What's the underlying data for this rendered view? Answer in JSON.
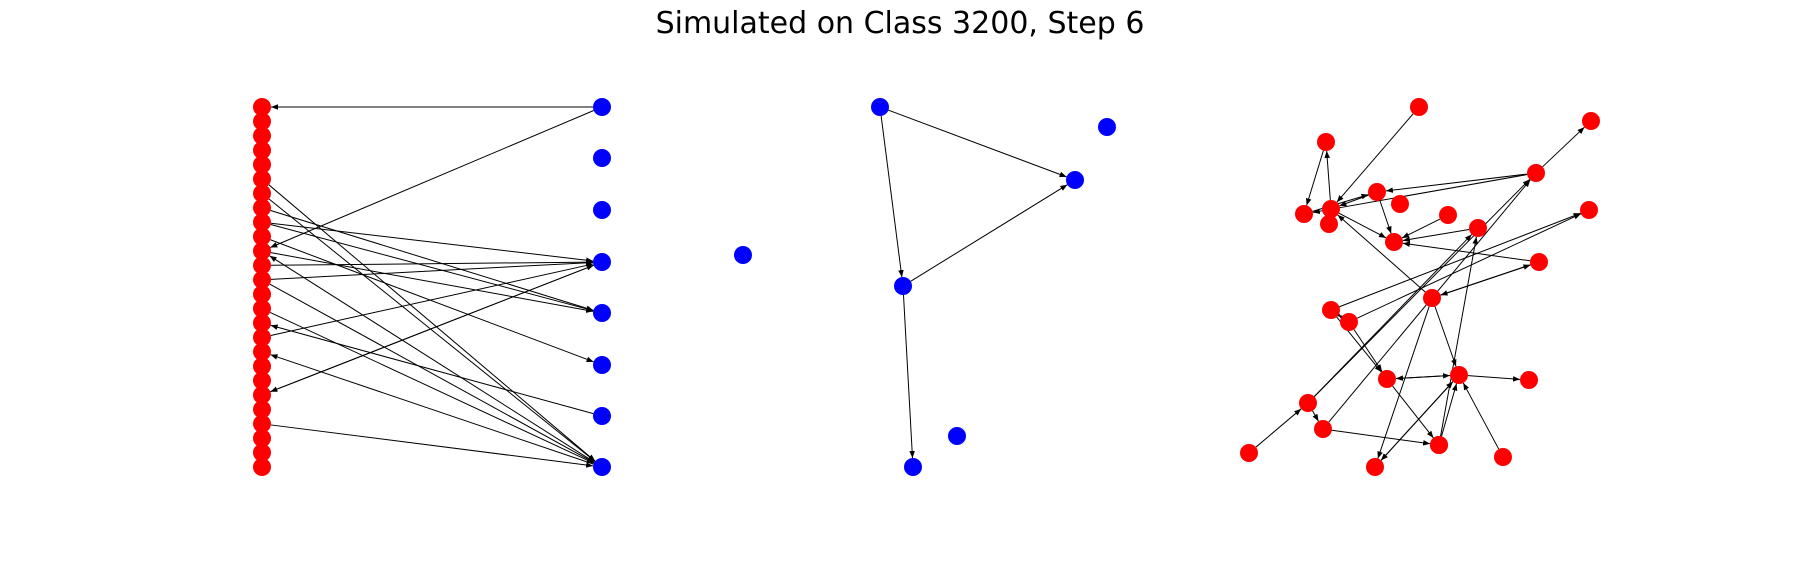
{
  "title": "Simulated on Class 3200, Step 6",
  "colors": {
    "red": "#ff0000",
    "blue": "#0000ff",
    "edge": "#000000"
  },
  "panels": [
    {
      "name": "bipartite",
      "nodes": [
        {
          "id": "r0",
          "c": "red"
        },
        {
          "id": "r1",
          "c": "red"
        },
        {
          "id": "r2",
          "c": "red"
        },
        {
          "id": "r3",
          "c": "red"
        },
        {
          "id": "r4",
          "c": "red"
        },
        {
          "id": "r5",
          "c": "red"
        },
        {
          "id": "r6",
          "c": "red"
        },
        {
          "id": "r7",
          "c": "red"
        },
        {
          "id": "r8",
          "c": "red"
        },
        {
          "id": "r9",
          "c": "red"
        },
        {
          "id": "r10",
          "c": "red"
        },
        {
          "id": "r11",
          "c": "red"
        },
        {
          "id": "r12",
          "c": "red"
        },
        {
          "id": "r13",
          "c": "red"
        },
        {
          "id": "r14",
          "c": "red"
        },
        {
          "id": "r15",
          "c": "red"
        },
        {
          "id": "r16",
          "c": "red"
        },
        {
          "id": "r17",
          "c": "red"
        },
        {
          "id": "r18",
          "c": "red"
        },
        {
          "id": "r19",
          "c": "red"
        },
        {
          "id": "r20",
          "c": "red"
        },
        {
          "id": "r21",
          "c": "red"
        },
        {
          "id": "r22",
          "c": "red"
        },
        {
          "id": "r23",
          "c": "red"
        },
        {
          "id": "r24",
          "c": "red"
        },
        {
          "id": "r25",
          "c": "red"
        },
        {
          "id": "b0",
          "c": "blue"
        },
        {
          "id": "b1",
          "c": "blue"
        },
        {
          "id": "b2",
          "c": "blue"
        },
        {
          "id": "b3",
          "c": "blue"
        },
        {
          "id": "b4",
          "c": "blue"
        },
        {
          "id": "b5",
          "c": "blue"
        },
        {
          "id": "b6",
          "c": "blue"
        },
        {
          "id": "b7",
          "c": "blue"
        },
        {
          "id": "b8",
          "c": "blue"
        }
      ],
      "edges": [
        [
          "b0",
          "r0"
        ],
        [
          "b0",
          "r10"
        ],
        [
          "r5",
          "b7"
        ],
        [
          "r6",
          "b7"
        ],
        [
          "r7",
          "b4"
        ],
        [
          "r8",
          "b4"
        ],
        [
          "r8",
          "b3"
        ],
        [
          "r10",
          "b4"
        ],
        [
          "r9",
          "b5"
        ],
        [
          "r11",
          "b3"
        ],
        [
          "r12",
          "b3"
        ],
        [
          "r12",
          "b7"
        ],
        [
          "r16",
          "b3"
        ],
        [
          "r14",
          "b7"
        ],
        [
          "b3",
          "r20"
        ],
        [
          "r20",
          "b3"
        ],
        [
          "b6",
          "r15"
        ],
        [
          "b7",
          "r17"
        ],
        [
          "r22",
          "b7"
        ],
        [
          "b7",
          "r10"
        ]
      ]
    },
    {
      "name": "blue-graph",
      "nodes": [
        {
          "id": "a",
          "c": "blue"
        },
        {
          "id": "b",
          "c": "blue"
        },
        {
          "id": "c",
          "c": "blue"
        },
        {
          "id": "d",
          "c": "blue"
        },
        {
          "id": "e",
          "c": "blue"
        },
        {
          "id": "f",
          "c": "blue"
        }
      ],
      "edges": [
        [
          "a",
          "c"
        ],
        [
          "a",
          "d"
        ],
        [
          "d",
          "c"
        ],
        [
          "d",
          "f"
        ]
      ]
    },
    {
      "name": "red-graph",
      "nodes": [
        {
          "id": "n1",
          "c": "red"
        },
        {
          "id": "n2",
          "c": "red"
        },
        {
          "id": "n3",
          "c": "red"
        },
        {
          "id": "n4",
          "c": "red"
        },
        {
          "id": "n5",
          "c": "red"
        },
        {
          "id": "n6",
          "c": "red"
        },
        {
          "id": "n7",
          "c": "red"
        },
        {
          "id": "n8",
          "c": "red"
        },
        {
          "id": "n9",
          "c": "red"
        },
        {
          "id": "n10",
          "c": "red"
        },
        {
          "id": "n11",
          "c": "red"
        },
        {
          "id": "n12",
          "c": "red"
        },
        {
          "id": "n13",
          "c": "red"
        },
        {
          "id": "n14",
          "c": "red"
        },
        {
          "id": "n15",
          "c": "red"
        },
        {
          "id": "n16",
          "c": "red"
        },
        {
          "id": "n17",
          "c": "red"
        },
        {
          "id": "n18",
          "c": "red"
        },
        {
          "id": "n19",
          "c": "red"
        },
        {
          "id": "n20",
          "c": "red"
        },
        {
          "id": "n21",
          "c": "red"
        },
        {
          "id": "n22",
          "c": "red"
        },
        {
          "id": "n23",
          "c": "red"
        },
        {
          "id": "n24",
          "c": "red"
        },
        {
          "id": "n25",
          "c": "red"
        },
        {
          "id": "n26",
          "c": "red"
        },
        {
          "id": "n27",
          "c": "red"
        }
      ],
      "edges": [
        [
          "n6",
          "n1"
        ],
        [
          "n6",
          "n7"
        ],
        [
          "n1",
          "n5"
        ],
        [
          "n2",
          "n6"
        ],
        [
          "n4",
          "n6"
        ],
        [
          "n5",
          "n4"
        ],
        [
          "n4",
          "n10"
        ],
        [
          "n6",
          "n10"
        ],
        [
          "n9",
          "n10"
        ],
        [
          "n12",
          "n4"
        ],
        [
          "n12",
          "n3"
        ],
        [
          "n12",
          "n5"
        ],
        [
          "n13",
          "n10"
        ],
        [
          "n18",
          "n12"
        ],
        [
          "n18",
          "n13"
        ],
        [
          "n18",
          "n21"
        ],
        [
          "n20",
          "n18"
        ],
        [
          "n21",
          "n12"
        ],
        [
          "n19",
          "n24"
        ],
        [
          "n14",
          "n10"
        ],
        [
          "n14",
          "n17"
        ],
        [
          "n17",
          "n14"
        ],
        [
          "n17",
          "n6"
        ],
        [
          "n17",
          "n22"
        ],
        [
          "n17",
          "n25"
        ],
        [
          "n16",
          "n15"
        ],
        [
          "n15",
          "n16"
        ],
        [
          "n15",
          "n11"
        ],
        [
          "n16",
          "n19"
        ],
        [
          "n16",
          "n11"
        ],
        [
          "n15",
          "n19"
        ],
        [
          "n22",
          "n23"
        ],
        [
          "n22",
          "n25"
        ],
        [
          "n25",
          "n22"
        ],
        [
          "n22",
          "n19"
        ],
        [
          "n24",
          "n22"
        ],
        [
          "n24",
          "n26"
        ],
        [
          "n26",
          "n24"
        ],
        [
          "n19",
          "n22"
        ],
        [
          "n27",
          "n22"
        ],
        [
          "n24",
          "n13"
        ],
        [
          "n21",
          "n24"
        ]
      ]
    }
  ]
}
